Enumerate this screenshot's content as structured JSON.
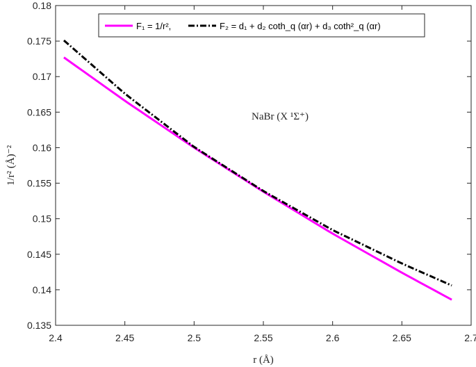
{
  "chart_data": {
    "type": "line",
    "xlabel": "r (Å)",
    "ylabel": "1/r² (Å)⁻²",
    "xlim": [
      2.4,
      2.7
    ],
    "ylim": [
      0.135,
      0.18
    ],
    "xticks": [
      "2.4",
      "2.45",
      "2.5",
      "2.55",
      "2.6",
      "2.65",
      "2.7"
    ],
    "yticks": [
      "0.135",
      "0.14",
      "0.145",
      "0.15",
      "0.155",
      "0.16",
      "0.165",
      "0.17",
      "0.175",
      "0.18"
    ],
    "grid": false,
    "legend_position": "top",
    "annotation": "NaBr (X ¹Σ⁺)",
    "series": [
      {
        "name": "F₁ = 1/r²,",
        "style": "solid",
        "color": "#ff00ff",
        "x": [
          2.406,
          2.45,
          2.5,
          2.55,
          2.6,
          2.65,
          2.686
        ],
        "y": [
          0.1727,
          0.1666,
          0.16,
          0.1538,
          0.1479,
          0.1424,
          0.1386
        ]
      },
      {
        "name": "F₂ = d₁ + d₂ coth_q (αr) + d₃ coth²_q (αr)",
        "style": "dashdot",
        "color": "#000000",
        "x": [
          2.406,
          2.45,
          2.5,
          2.55,
          2.6,
          2.65,
          2.686
        ],
        "y": [
          0.1751,
          0.1676,
          0.1601,
          0.1539,
          0.1484,
          0.1437,
          0.1406
        ]
      }
    ]
  }
}
